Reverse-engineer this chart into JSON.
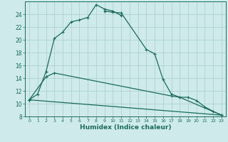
{
  "xlabel": "Humidex (Indice chaleur)",
  "bg_color": "#ceeaea",
  "grid_color": "#aacccc",
  "line_color": "#1a6b5a",
  "xlim": [
    -0.5,
    23.5
  ],
  "ylim": [
    8,
    26
  ],
  "xticks": [
    0,
    1,
    2,
    3,
    4,
    5,
    6,
    7,
    8,
    9,
    10,
    11,
    12,
    13,
    14,
    15,
    16,
    17,
    18,
    19,
    20,
    21,
    22,
    23
  ],
  "yticks": [
    8,
    10,
    12,
    14,
    16,
    18,
    20,
    22,
    24
  ],
  "curve1_x": [
    0,
    1,
    2,
    3,
    4,
    5,
    6,
    7,
    8,
    9,
    10,
    11
  ],
  "curve1_y": [
    10.6,
    11.5,
    15.0,
    20.2,
    21.2,
    22.8,
    23.1,
    23.5,
    25.5,
    24.8,
    24.5,
    23.8
  ],
  "curve2_x": [
    9,
    10,
    11,
    14,
    15,
    16,
    17,
    18,
    19,
    20,
    21,
    22,
    23
  ],
  "curve2_y": [
    24.5,
    24.3,
    24.2,
    18.5,
    17.8,
    13.8,
    11.5,
    11.0,
    11.0,
    10.5,
    9.5,
    8.8,
    8.2
  ],
  "line3_x": [
    0,
    23
  ],
  "line3_y": [
    10.6,
    8.2
  ],
  "line4_x": [
    0,
    2,
    3,
    17,
    18,
    23
  ],
  "line4_y": [
    10.6,
    14.2,
    14.8,
    11.2,
    11.0,
    8.2
  ]
}
